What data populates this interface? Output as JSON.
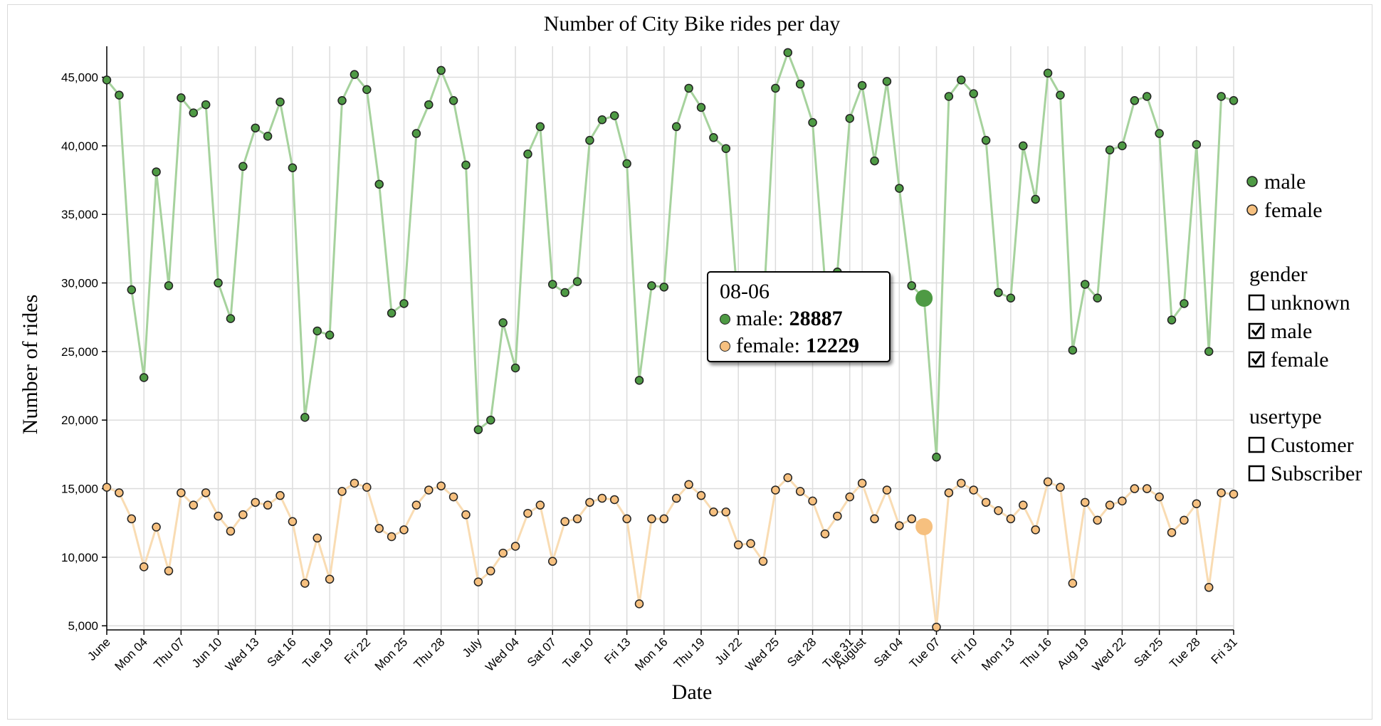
{
  "colors": {
    "male": "#4e9a44",
    "female": "#f6c07f",
    "male_line": "#a6d29d",
    "female_line": "#f9dcb3"
  },
  "legend": {
    "series": [
      {
        "label": "male",
        "color": "#4e9a44"
      },
      {
        "label": "female",
        "color": "#f6c07f"
      }
    ],
    "gender": {
      "title": "gender",
      "options": [
        {
          "label": "unknown",
          "checked": false
        },
        {
          "label": "male",
          "checked": true
        },
        {
          "label": "female",
          "checked": true
        }
      ]
    },
    "usertype": {
      "title": "usertype",
      "options": [
        {
          "label": "Customer",
          "checked": false
        },
        {
          "label": "Subscriber",
          "checked": false
        }
      ]
    }
  },
  "tooltip": {
    "date": "08-06",
    "male_label": "male:",
    "male_value": "28887",
    "female_label": "female:",
    "female_value": "12229"
  },
  "chart_data": {
    "type": "line",
    "title": "Number of City Bike rides per day",
    "xlabel": "Date",
    "ylabel": "Number of rides",
    "ylim": [
      4700,
      47000
    ],
    "yticks": [
      5000,
      10000,
      15000,
      20000,
      25000,
      30000,
      35000,
      40000,
      45000
    ],
    "ytick_labels": [
      "5,000",
      "10,000",
      "15,000",
      "20,000",
      "25,000",
      "30,000",
      "35,000",
      "40,000",
      "45,000"
    ],
    "x_start": "2018-06-01",
    "x_end": "2018-08-31",
    "xticks": [
      {
        "date": "2018-06-01",
        "label": "June"
      },
      {
        "date": "2018-06-04",
        "label": "Mon 04"
      },
      {
        "date": "2018-06-07",
        "label": "Thu 07"
      },
      {
        "date": "2018-06-10",
        "label": "Jun 10"
      },
      {
        "date": "2018-06-13",
        "label": "Wed 13"
      },
      {
        "date": "2018-06-16",
        "label": "Sat 16"
      },
      {
        "date": "2018-06-19",
        "label": "Tue 19"
      },
      {
        "date": "2018-06-22",
        "label": "Fri 22"
      },
      {
        "date": "2018-06-25",
        "label": "Mon 25"
      },
      {
        "date": "2018-06-28",
        "label": "Thu 28"
      },
      {
        "date": "2018-07-01",
        "label": "July"
      },
      {
        "date": "2018-07-04",
        "label": "Wed 04"
      },
      {
        "date": "2018-07-07",
        "label": "Sat 07"
      },
      {
        "date": "2018-07-10",
        "label": "Tue 10"
      },
      {
        "date": "2018-07-13",
        "label": "Fri 13"
      },
      {
        "date": "2018-07-16",
        "label": "Mon 16"
      },
      {
        "date": "2018-07-19",
        "label": "Thu 19"
      },
      {
        "date": "2018-07-22",
        "label": "Jul 22"
      },
      {
        "date": "2018-07-25",
        "label": "Wed 25"
      },
      {
        "date": "2018-07-28",
        "label": "Sat 28"
      },
      {
        "date": "2018-07-31",
        "label": "Tue 31"
      },
      {
        "date": "2018-08-01",
        "label": "August"
      },
      {
        "date": "2018-08-04",
        "label": "Sat 04"
      },
      {
        "date": "2018-08-07",
        "label": "Tue 07"
      },
      {
        "date": "2018-08-10",
        "label": "Fri 10"
      },
      {
        "date": "2018-08-13",
        "label": "Mon 13"
      },
      {
        "date": "2018-08-16",
        "label": "Thu 16"
      },
      {
        "date": "2018-08-19",
        "label": "Aug 19"
      },
      {
        "date": "2018-08-22",
        "label": "Wed 22"
      },
      {
        "date": "2018-08-25",
        "label": "Sat 25"
      },
      {
        "date": "2018-08-28",
        "label": "Tue 28"
      },
      {
        "date": "2018-08-31",
        "label": "Fri 31"
      }
    ],
    "highlight_date": "2018-08-06",
    "grid": true,
    "legend_position": "right",
    "series": [
      {
        "name": "male",
        "values": [
          44800,
          43700,
          29500,
          23100,
          38100,
          29800,
          43500,
          42400,
          43000,
          30000,
          27400,
          38500,
          41300,
          40700,
          43200,
          38400,
          20200,
          26500,
          26200,
          43300,
          45200,
          44100,
          37200,
          27800,
          28500,
          40900,
          43000,
          45500,
          43300,
          38600,
          19300,
          20000,
          27100,
          23800,
          39400,
          41400,
          29900,
          29300,
          30100,
          40400,
          41900,
          42200,
          38700,
          22900,
          29800,
          29700,
          41400,
          44200,
          42800,
          40600,
          39800,
          28000,
          27000,
          27700,
          44200,
          46800,
          44500,
          41700,
          30100,
          30800,
          42000,
          44400,
          38900,
          44700,
          36900,
          29800,
          28887,
          17300,
          43600,
          44800,
          43800,
          40400,
          29300,
          28900,
          40000,
          36100,
          45300,
          43700,
          25100,
          29900,
          28900,
          39700,
          40000,
          43300,
          43600,
          40900,
          27300,
          28500,
          40100,
          25000,
          43600,
          43300
        ]
      },
      {
        "name": "female",
        "values": [
          15100,
          14700,
          12800,
          9300,
          12200,
          9000,
          14700,
          13800,
          14700,
          13000,
          11900,
          13100,
          14000,
          13800,
          14500,
          12600,
          8100,
          11400,
          8400,
          14800,
          15400,
          15100,
          12100,
          11500,
          12000,
          13800,
          14900,
          15200,
          14400,
          13100,
          8200,
          9000,
          10300,
          10800,
          13200,
          13800,
          9700,
          12600,
          12800,
          14000,
          14300,
          14200,
          12800,
          6600,
          12800,
          12800,
          14300,
          15300,
          14500,
          13300,
          13300,
          10900,
          11000,
          9700,
          14900,
          15800,
          14800,
          14100,
          11700,
          13000,
          14400,
          15400,
          12800,
          14900,
          12300,
          12800,
          12229,
          4900,
          14700,
          15400,
          14900,
          14000,
          13400,
          12800,
          13800,
          12000,
          15500,
          15100,
          8100,
          14000,
          12700,
          13800,
          14100,
          15000,
          15000,
          14400,
          11800,
          12700,
          13900,
          7800,
          14700,
          14600
        ]
      }
    ]
  }
}
